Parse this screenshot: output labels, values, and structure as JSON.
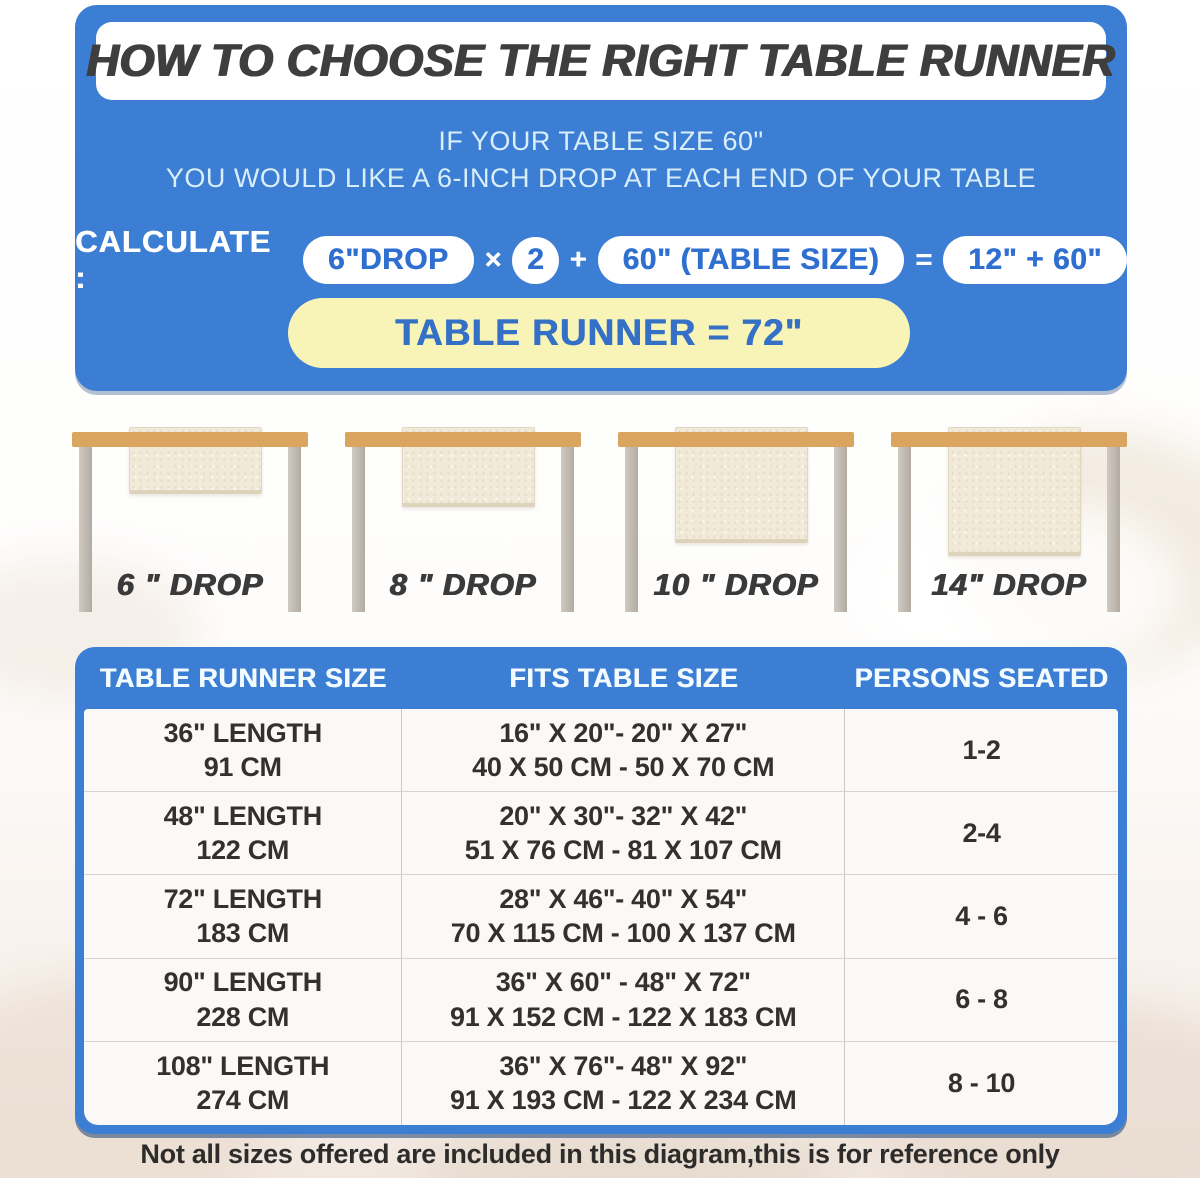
{
  "colors": {
    "panel_blue": "#3b7ed3",
    "pill_text_blue": "#2e6fd0",
    "result_yellow": "#f8f4b8",
    "title_text": "#3e3e3e",
    "subtitle_light_blue": "#d9eefb",
    "tabletop_tan": "#d9a55f",
    "leg_gray": "#bfb8b0",
    "runner_cream": "#f1ead9"
  },
  "header": {
    "title": "HOW TO CHOOSE THE RIGHT TABLE RUNNER",
    "subtitle_line1": "IF YOUR TABLE SIZE 60\"",
    "subtitle_line2": "YOU WOULD LIKE A 6-INCH DROP AT EACH END OF YOUR TABLE"
  },
  "calculation": {
    "label": "CALCULATE :",
    "drop_pill": "6\"DROP",
    "times_op": "×",
    "multiplier": "2",
    "plus_op": "+",
    "table_size_pill": "60\" (TABLE SIZE)",
    "equals_op": "=",
    "sum_pill": "12\" + 60\"",
    "result": "TABLE RUNNER = 72\""
  },
  "drops": [
    {
      "label": "6 \" DROP"
    },
    {
      "label": "8 \" DROP"
    },
    {
      "label": "10 \" DROP"
    },
    {
      "label": "14\" DROP"
    }
  ],
  "size_table": {
    "headers": [
      "TABLE RUNNER SIZE",
      "FITS TABLE SIZE",
      "PERSONS SEATED"
    ],
    "rows": [
      {
        "length_in": "36\" LENGTH",
        "length_cm": "91 CM",
        "fits_in": "16\" X 20\"- 20\" X 27\"",
        "fits_cm": "40 X 50 CM - 50 X 70 CM",
        "persons": "1-2"
      },
      {
        "length_in": "48\" LENGTH",
        "length_cm": "122 CM",
        "fits_in": "20\" X 30\"- 32\" X 42\"",
        "fits_cm": "51 X 76 CM - 81 X 107 CM",
        "persons": "2-4"
      },
      {
        "length_in": "72\" LENGTH",
        "length_cm": "183 CM",
        "fits_in": "28\" X 46\"- 40\" X 54\"",
        "fits_cm": "70 X 115 CM - 100 X 137 CM",
        "persons": "4 - 6"
      },
      {
        "length_in": "90\" LENGTH",
        "length_cm": "228 CM",
        "fits_in": "36\" X 60\" - 48\" X 72\"",
        "fits_cm": "91 X 152 CM - 122 X 183 CM",
        "persons": "6 - 8"
      },
      {
        "length_in": "108\" LENGTH",
        "length_cm": "274 CM",
        "fits_in": "36\" X 76\"- 48\" X 92\"",
        "fits_cm": "91 X 193 CM - 122 X 234 CM",
        "persons": "8 - 10"
      }
    ]
  },
  "footnote": "Not all sizes offered are included in this diagram,this is for reference only"
}
